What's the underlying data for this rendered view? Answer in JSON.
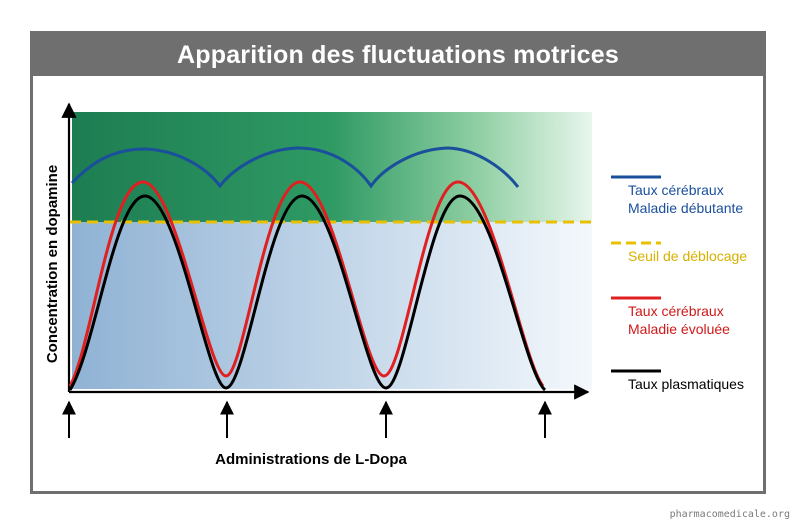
{
  "header": {
    "title": "Apparition des fluctuations motrices"
  },
  "axes": {
    "ylabel": "Concentration en dopamine",
    "xlabel": "Administrations de L-Dopa"
  },
  "legend": {
    "items": [
      {
        "lines": [
          "Taux cérébraux",
          "Maladie débutante"
        ],
        "color": "#1a4f9c",
        "style": "solid",
        "text_color": "#1a4f9c"
      },
      {
        "lines": [
          "Seuil de déblocage"
        ],
        "color": "#e8c000",
        "style": "dashed",
        "text_color": "#d8b000"
      },
      {
        "lines": [
          "Taux cérébraux",
          "Maladie évoluée"
        ],
        "color": "#e02020",
        "style": "solid",
        "text_color": "#d01818"
      },
      {
        "lines": [
          "Taux plasmatiques"
        ],
        "color": "#000000",
        "style": "solid",
        "text_color": "#000000"
      }
    ]
  },
  "colors": {
    "frame": "#6f6f6f",
    "green_zone": "#1f8a5a",
    "blue_zone": "#8fb2d4",
    "early_brain": "#1a4f9c",
    "threshold": "#e8c000",
    "advanced_brain": "#e02020",
    "plasma": "#000000"
  },
  "watermark": "pharmacomedicale.org"
}
